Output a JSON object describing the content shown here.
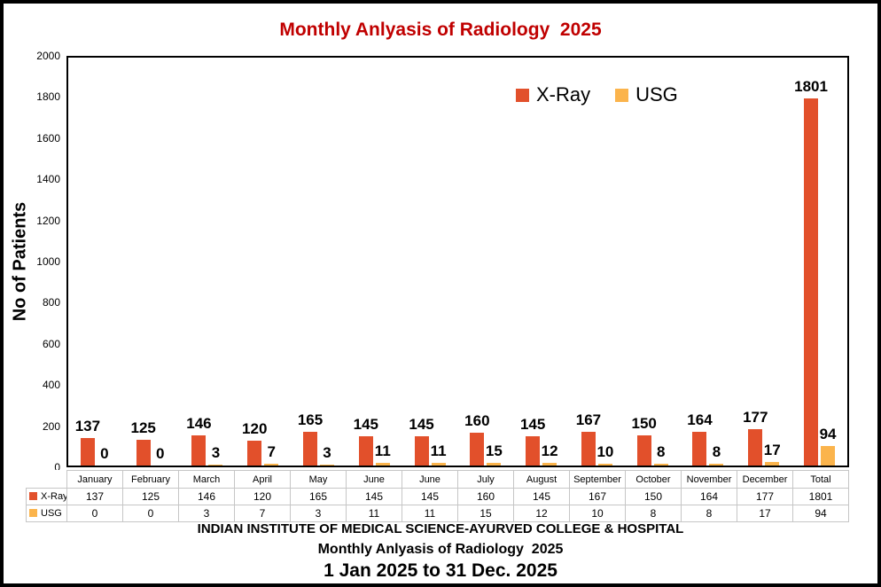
{
  "window": {
    "background": "#ffffff",
    "frame_color": "#000000"
  },
  "chart_data": {
    "type": "bar",
    "title": "Monthly Anlyasis of Radiology  2025",
    "title_color": "#C00000",
    "ylabel": "No of Patients",
    "ylim": [
      0,
      2000
    ],
    "y_ticks": [
      2000,
      1800,
      1600,
      1400,
      1200,
      1000,
      800,
      600,
      400,
      200,
      0
    ],
    "grid": false,
    "legend_position": "inside-top-right-of-center",
    "data_labels": "outside-end-bold",
    "categories": [
      "January",
      "February",
      "March",
      "April",
      "May",
      "June",
      "June",
      "July",
      "August",
      "September",
      "October",
      "November",
      "December",
      "Total"
    ],
    "series": [
      {
        "name": "X-Ray",
        "color": "#E2502B",
        "values": [
          137,
          125,
          146,
          120,
          165,
          145,
          145,
          160,
          145,
          167,
          150,
          164,
          177,
          1801
        ]
      },
      {
        "name": "USG",
        "color": "#FBB44C",
        "values": [
          0,
          0,
          3,
          7,
          3,
          11,
          11,
          15,
          12,
          10,
          8,
          8,
          17,
          94
        ]
      }
    ],
    "data_table_shown": true,
    "table_border_color": "#C6C6C6"
  },
  "footer": {
    "line1": "INDIAN INSTITUTE OF MEDICAL SCIENCE-AYURVED COLLEGE & HOSPITAL",
    "line2": "Monthly Anlyasis of Radiology  2025",
    "line3": "1 Jan 2025 to 31 Dec. 2025"
  }
}
